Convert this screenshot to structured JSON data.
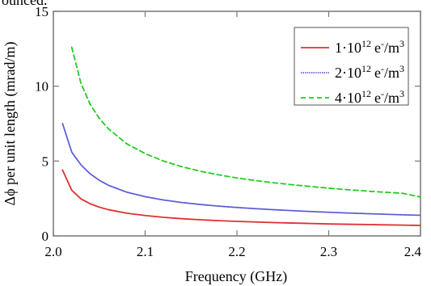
{
  "page": {
    "top_fragment": "ounced."
  },
  "chart_data": {
    "type": "line",
    "title": "",
    "xlabel": "Frequency (GHz)",
    "ylabel": "Δϕ per unit length (mrad/m)",
    "xlim": [
      2.0,
      2.4
    ],
    "ylim": [
      0,
      15
    ],
    "x_ticks": [
      2.0,
      2.1,
      2.2,
      2.3,
      2.4
    ],
    "x_tick_labels": [
      "2.0",
      "2.1",
      "2.2",
      "2.3",
      "2.4"
    ],
    "y_ticks": [
      0,
      5,
      10,
      15
    ],
    "y_tick_labels": [
      "0",
      "5",
      "10",
      "15"
    ],
    "grid": false,
    "legend_position": "top-right",
    "x": [
      2.01,
      2.02,
      2.03,
      2.04,
      2.05,
      2.06,
      2.08,
      2.1,
      2.12,
      2.14,
      2.16,
      2.18,
      2.2,
      2.22,
      2.24,
      2.26,
      2.28,
      2.3,
      2.32,
      2.34,
      2.36,
      2.38,
      2.4
    ],
    "series": [
      {
        "name": "1·10^12 e^-/m^3",
        "legend_base": "1·10",
        "legend_exp": "12",
        "legend_unit": "e",
        "legend_unit_sup": "-",
        "legend_slash": "/m",
        "legend_tail_sup": "3",
        "color": "#e03030",
        "dash": "solid",
        "values": [
          4.4,
          3.05,
          2.48,
          2.15,
          1.92,
          1.75,
          1.52,
          1.36,
          1.24,
          1.15,
          1.08,
          1.02,
          0.97,
          0.93,
          0.89,
          0.86,
          0.83,
          0.8,
          0.78,
          0.76,
          0.74,
          0.72,
          0.7
        ]
      },
      {
        "name": "2·10^12 e^-/m^3",
        "legend_base": "2·10",
        "legend_exp": "12",
        "legend_unit": "e",
        "legend_unit_sup": "-",
        "legend_slash": "/m",
        "legend_tail_sup": "3",
        "color": "#5b5bd6",
        "dash": "dotted",
        "values": [
          7.5,
          5.6,
          4.75,
          4.15,
          3.72,
          3.38,
          2.92,
          2.62,
          2.4,
          2.23,
          2.1,
          1.99,
          1.9,
          1.82,
          1.75,
          1.69,
          1.63,
          1.58,
          1.53,
          1.49,
          1.45,
          1.41,
          1.38
        ]
      },
      {
        "name": "4·10^12 e^-/m^3",
        "legend_base": "4·10",
        "legend_exp": "12",
        "legend_unit": "e",
        "legend_unit_sup": "-",
        "legend_slash": "/m",
        "legend_tail_sup": "3",
        "color": "#22cc22",
        "dash": "dashed",
        "values": [
          null,
          12.6,
          10.2,
          8.8,
          7.85,
          7.15,
          6.15,
          5.5,
          5.0,
          4.62,
          4.32,
          4.08,
          3.87,
          3.7,
          3.55,
          3.42,
          3.3,
          3.19,
          3.09,
          3.0,
          2.92,
          2.85,
          2.6
        ]
      }
    ]
  }
}
